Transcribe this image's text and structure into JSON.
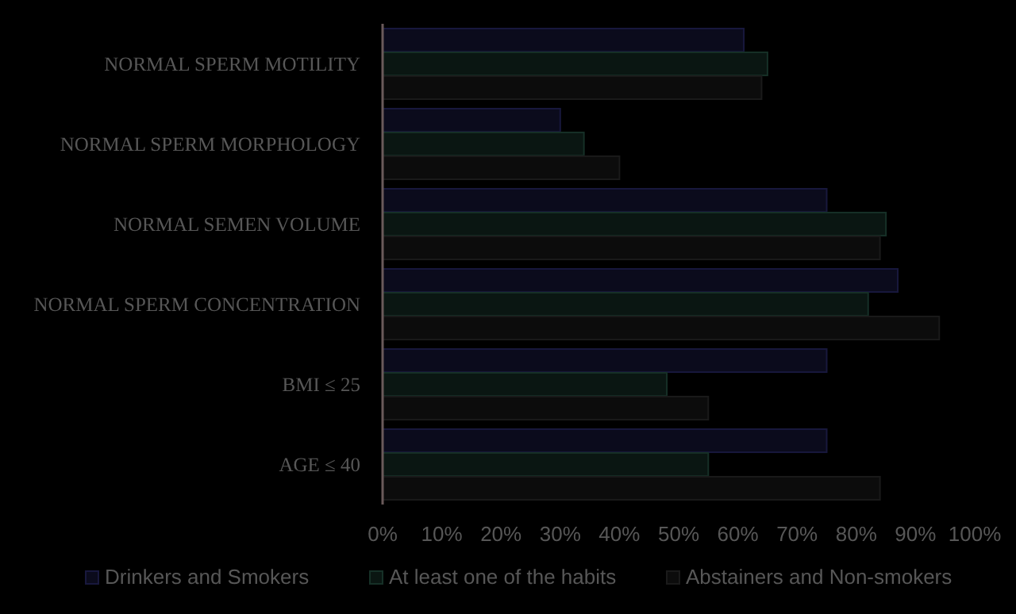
{
  "chart_data": {
    "type": "bar",
    "orientation": "horizontal",
    "categories": [
      "NORMAL SPERM MOTILITY",
      "NORMAL SPERM MORPHOLOGY",
      "NORMAL SEMEN VOLUME",
      "NORMAL SPERM CONCENTRATION",
      "BMI ≤ 25",
      "AGE ≤ 40"
    ],
    "series": [
      {
        "name": "Drinkers and Smokers",
        "color": "#0b0b1c",
        "values": [
          61,
          30,
          75,
          87,
          75,
          75
        ]
      },
      {
        "name": "At least one of the habits",
        "color": "#0a1612",
        "values": [
          65,
          34,
          85,
          82,
          48,
          55
        ]
      },
      {
        "name": "Abstainers and Non-smokers",
        "color": "#0c0c0c",
        "values": [
          64,
          40,
          84,
          94,
          55,
          84
        ]
      }
    ],
    "xlim": [
      0,
      100
    ],
    "xticks": [
      {
        "value": 0,
        "label": "0%"
      },
      {
        "value": 10,
        "label": "10%"
      },
      {
        "value": 20,
        "label": "20%"
      },
      {
        "value": 30,
        "label": "30%"
      },
      {
        "value": 40,
        "label": "40%"
      },
      {
        "value": 50,
        "label": "50%"
      },
      {
        "value": 60,
        "label": "60%"
      },
      {
        "value": 70,
        "label": "70%"
      },
      {
        "value": 80,
        "label": "80%"
      },
      {
        "value": 90,
        "label": "90%"
      },
      {
        "value": 100,
        "label": "100%"
      }
    ],
    "legend": "bottom"
  }
}
